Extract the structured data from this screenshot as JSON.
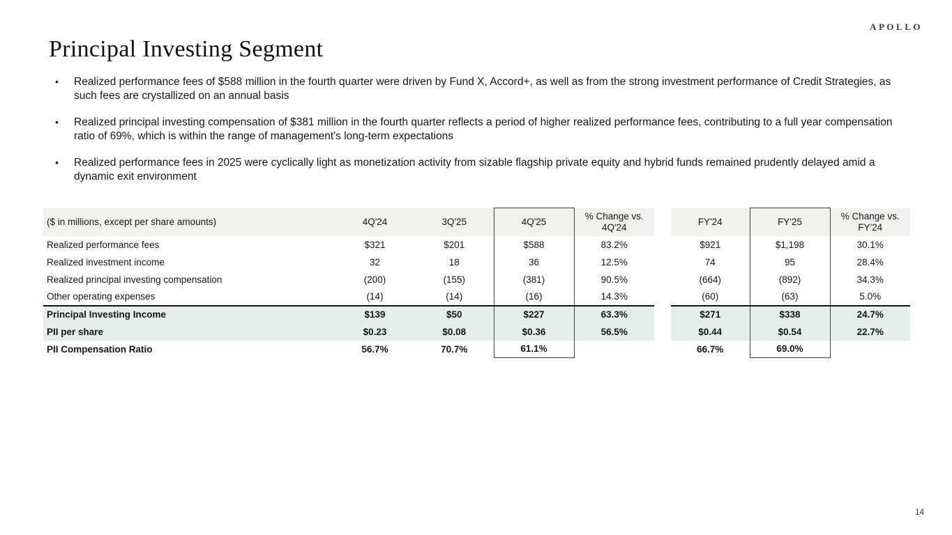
{
  "brand": {
    "logo_text": "APOLLO"
  },
  "page": {
    "title": "Principal Investing Segment",
    "page_number": "14"
  },
  "bullets": [
    "Realized performance fees of $588 million in the fourth quarter were driven by Fund X, Accord+, as well as from the strong investment performance of Credit Strategies, as such fees are crystallized on an annual basis",
    "Realized principal investing compensation of $381 million in the fourth quarter reflects a period of higher realized performance fees, contributing to a full year compensation ratio of 69%, which is within the range of management's long-term expectations",
    "Realized performance fees in 2025 were cyclically light as monetization activity from sizable flagship private equity and hybrid funds remained prudently delayed amid a dynamic exit environment"
  ],
  "table": {
    "caption": "($ in millions, except per share amounts)",
    "columns": [
      "4Q'24",
      "3Q'25",
      "4Q'25",
      "% Change vs. 4Q'24",
      "FY'24",
      "FY'25",
      "% Change vs. FY'24"
    ],
    "rows": [
      {
        "label": "Realized performance fees",
        "values": [
          "$321",
          "$201",
          "$588",
          "83.2%",
          "$921",
          "$1,198",
          "30.1%"
        ]
      },
      {
        "label": "Realized investment income",
        "values": [
          "32",
          "18",
          "36",
          "12.5%",
          "74",
          "95",
          "28.4%"
        ]
      },
      {
        "label": "Realized principal investing compensation",
        "values": [
          "(200)",
          "(155)",
          "(381)",
          "90.5%",
          "(664)",
          "(892)",
          "34.3%"
        ]
      },
      {
        "label": "Other operating expenses",
        "values": [
          "(14)",
          "(14)",
          "(16)",
          "14.3%",
          "(60)",
          "(63)",
          "5.0%"
        ]
      },
      {
        "label": "Principal Investing Income",
        "values": [
          "$139",
          "$50",
          "$227",
          "63.3%",
          "$271",
          "$338",
          "24.7%"
        ]
      },
      {
        "label": "PII per share",
        "values": [
          "$0.23",
          "$0.08",
          "$0.36",
          "56.5%",
          "$0.44",
          "$0.54",
          "22.7%"
        ]
      },
      {
        "label": "PII Compensation Ratio",
        "values": [
          "56.7%",
          "70.7%",
          "61.1%",
          "",
          "66.7%",
          "69.0%",
          ""
        ]
      }
    ]
  },
  "colors": {
    "header_bg": "#f1f1ef",
    "highlight_bg": "#e4eeea",
    "box_border": "#3f3f3f",
    "rule": "#111111"
  }
}
